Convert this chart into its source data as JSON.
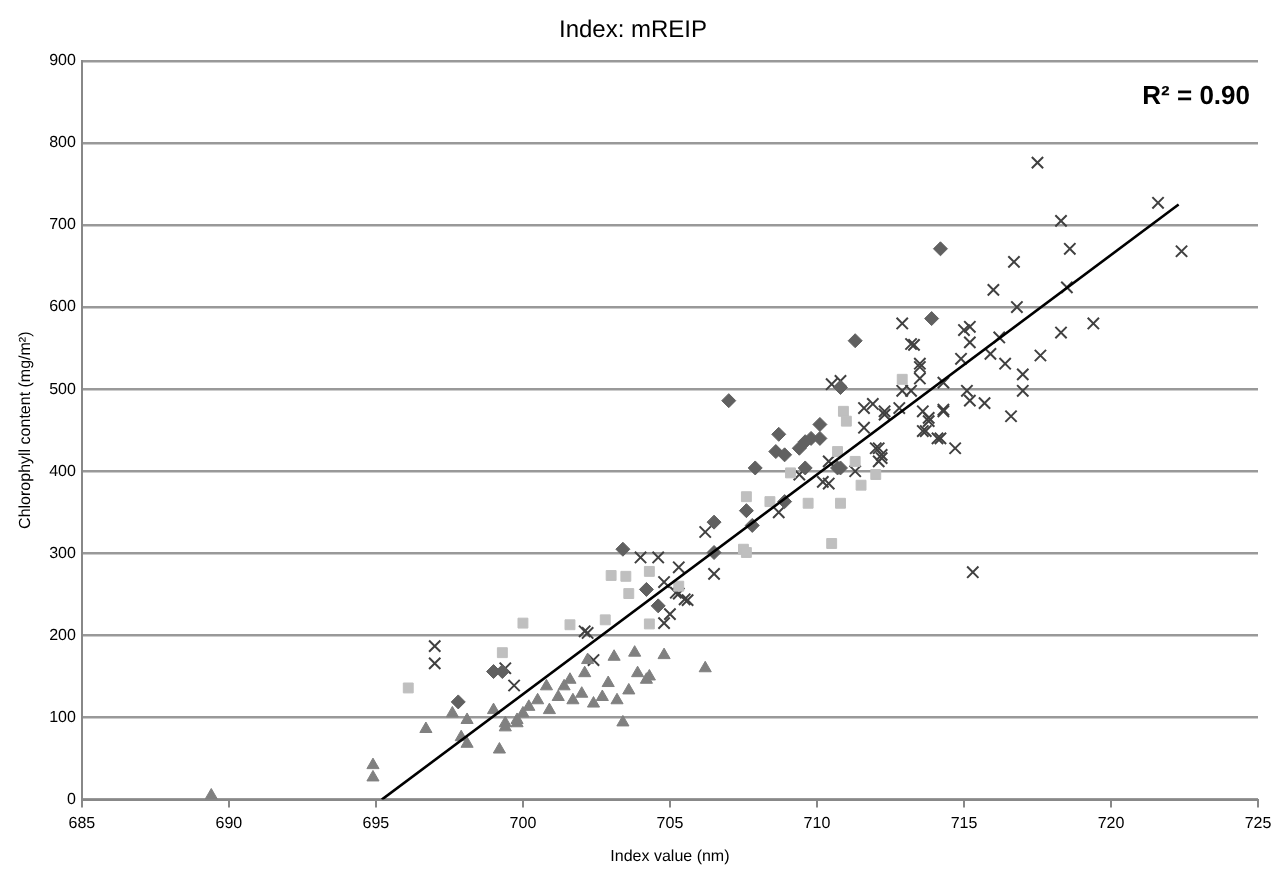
{
  "chart_data": {
    "type": "scatter",
    "title": "Index: mREIP",
    "xlabel": "Index value (nm)",
    "ylabel": "Chlorophyll content (mg/m²)",
    "annotations": [
      "R² = 0.90"
    ],
    "xlim": [
      685,
      725
    ],
    "xticks": [
      685,
      690,
      695,
      700,
      705,
      710,
      715,
      720,
      725
    ],
    "ylim": [
      0,
      900
    ],
    "yticks": [
      0,
      100,
      200,
      300,
      400,
      500,
      600,
      700,
      800,
      900
    ],
    "grid": "y",
    "legend": false,
    "series": [
      {
        "color": "#808080",
        "marker": "triangle",
        "x": [
          689.4,
          694.9,
          694.9,
          696.7,
          697.6,
          697.9,
          698.1,
          699.2,
          699.4,
          699.8,
          698.1,
          699.0,
          699.4,
          699.8,
          700.0,
          700.2,
          700.5,
          700.8,
          700.9,
          701.2,
          701.4,
          701.6,
          701.7,
          702.0,
          702.1,
          702.2,
          702.4,
          702.7,
          702.9,
          703.1,
          703.2,
          703.4,
          703.6,
          703.8,
          703.9,
          704.2,
          704.3,
          704.8,
          706.2
        ],
        "values": [
          5,
          42,
          27,
          86,
          105,
          76,
          68,
          61,
          88,
          93,
          97,
          109,
          93,
          97,
          105,
          113,
          121,
          138,
          109,
          125,
          138,
          146,
          121,
          129,
          154,
          170,
          117,
          125,
          142,
          174,
          121,
          94,
          133,
          179,
          154,
          146,
          150,
          176,
          160
        ]
      },
      {
        "color": "#bfbfbf",
        "marker": "square",
        "x": [
          696.1,
          699.3,
          700.0,
          701.6,
          702.8,
          703.0,
          703.5,
          703.6,
          704.3,
          704.3,
          705.3,
          707.6,
          707.5,
          707.6,
          708.4,
          709.1,
          709.7,
          710.5,
          710.7,
          710.8,
          710.9,
          711.0,
          711.3,
          711.5,
          712.0,
          712.9
        ],
        "values": [
          136,
          179,
          215,
          213,
          219,
          273,
          272,
          251,
          278,
          214,
          260,
          369,
          305,
          301,
          363,
          398,
          361,
          312,
          424,
          361,
          473,
          461,
          412,
          383,
          396,
          512
        ]
      },
      {
        "color": "#606060",
        "marker": "diamond",
        "x": [
          697.8,
          699.0,
          699.3,
          703.4,
          704.2,
          704.6,
          706.5,
          706.5,
          707.6,
          707.0,
          707.8,
          707.9,
          708.6,
          708.7,
          708.9,
          709.4,
          709.6,
          709.8,
          710.1,
          710.1,
          709.6,
          708.9,
          710.8,
          710.7,
          714.2,
          713.9,
          711.3,
          710.8
        ],
        "values": [
          119,
          156,
          156,
          305,
          256,
          236,
          338,
          301,
          352,
          486,
          334,
          404,
          424,
          445,
          420,
          428,
          436,
          440,
          457,
          440,
          404,
          363,
          502,
          404,
          671,
          586,
          559,
          404
        ]
      },
      {
        "color": "#404040",
        "marker": "cross",
        "x": [
          697.0,
          697.0,
          699.4,
          699.7,
          702.1,
          702.4,
          704.0,
          704.6,
          705.3,
          704.8,
          705.3,
          705.6,
          705.0,
          704.8,
          706.2,
          706.5,
          702.2,
          705.2,
          705.5,
          708.7,
          709.4,
          710.2,
          710.4,
          710.5,
          710.8,
          711.6,
          711.6,
          712.0,
          712.2,
          712.1,
          712.3,
          712.9,
          712.8,
          713.2,
          713.5,
          713.6,
          713.8,
          713.7,
          714.2,
          714.3,
          717.5,
          721.6,
          722.4,
          718.3,
          718.6,
          716.7,
          716.0,
          716.8,
          718.5,
          719.4,
          718.3,
          712.9,
          713.3,
          715.0,
          715.2,
          715.2,
          716.2,
          714.9,
          715.9,
          716.4,
          717.6,
          717.0,
          717.0,
          715.1,
          715.2,
          715.7,
          716.6,
          713.5,
          713.5,
          714.3,
          713.2,
          713.8,
          713.6,
          714.1,
          714.7,
          714.3,
          715.3,
          711.9,
          712.3,
          712.1,
          712.2,
          710.4,
          711.3
        ],
        "values": [
          187,
          166,
          160,
          139,
          205,
          170,
          295,
          295,
          283,
          265,
          251,
          243,
          226,
          215,
          326,
          275,
          203,
          252,
          244,
          350,
          396,
          387,
          412,
          506,
          510,
          477,
          453,
          428,
          420,
          412,
          473,
          498,
          477,
          555,
          527,
          473,
          465,
          449,
          440,
          473,
          776,
          727,
          668,
          705,
          671,
          655,
          621,
          600,
          624,
          580,
          569,
          580,
          554,
          572,
          576,
          557,
          563,
          537,
          543,
          531,
          541,
          518,
          498,
          498,
          486,
          483,
          467,
          531,
          513,
          508,
          498,
          461,
          449,
          440,
          428,
          475,
          277,
          482,
          469,
          428,
          416,
          385,
          400
        ]
      },
      {
        "type": "line",
        "color": "#000000",
        "marker": "none",
        "x": [
          695.2,
          722.3
        ],
        "values": [
          0,
          725
        ]
      }
    ]
  }
}
